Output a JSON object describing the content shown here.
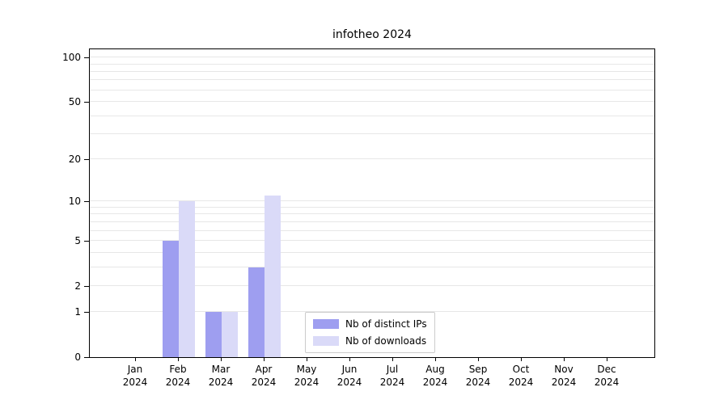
{
  "chart_data": {
    "type": "bar",
    "title": "infotheo 2024",
    "categories": [
      "Jan 2024",
      "Feb 2024",
      "Mar 2024",
      "Apr 2024",
      "May 2024",
      "Jun 2024",
      "Jul 2024",
      "Aug 2024",
      "Sep 2024",
      "Oct 2024",
      "Nov 2024",
      "Dec 2024"
    ],
    "series": [
      {
        "name": "Nb of distinct IPs",
        "color": "#9e9ef0",
        "values": [
          0,
          5,
          1,
          3,
          0,
          0,
          0,
          0,
          0,
          0,
          0,
          0
        ]
      },
      {
        "name": "Nb of downloads",
        "color": "#dadaf8",
        "values": [
          0,
          10,
          1,
          11,
          0,
          0,
          0,
          0,
          0,
          0,
          0,
          0
        ]
      }
    ],
    "y_axis": {
      "scale": "log1p",
      "ticks": [
        0,
        1,
        2,
        5,
        10,
        20,
        50,
        100
      ],
      "gridlines": [
        1,
        2,
        3,
        4,
        5,
        6,
        7,
        8,
        9,
        10,
        20,
        30,
        40,
        50,
        60,
        70,
        80,
        90,
        100
      ],
      "max": 113.6
    },
    "xlabel": "",
    "ylabel": "",
    "grid": "horizontal",
    "legend_position": "lower center"
  }
}
